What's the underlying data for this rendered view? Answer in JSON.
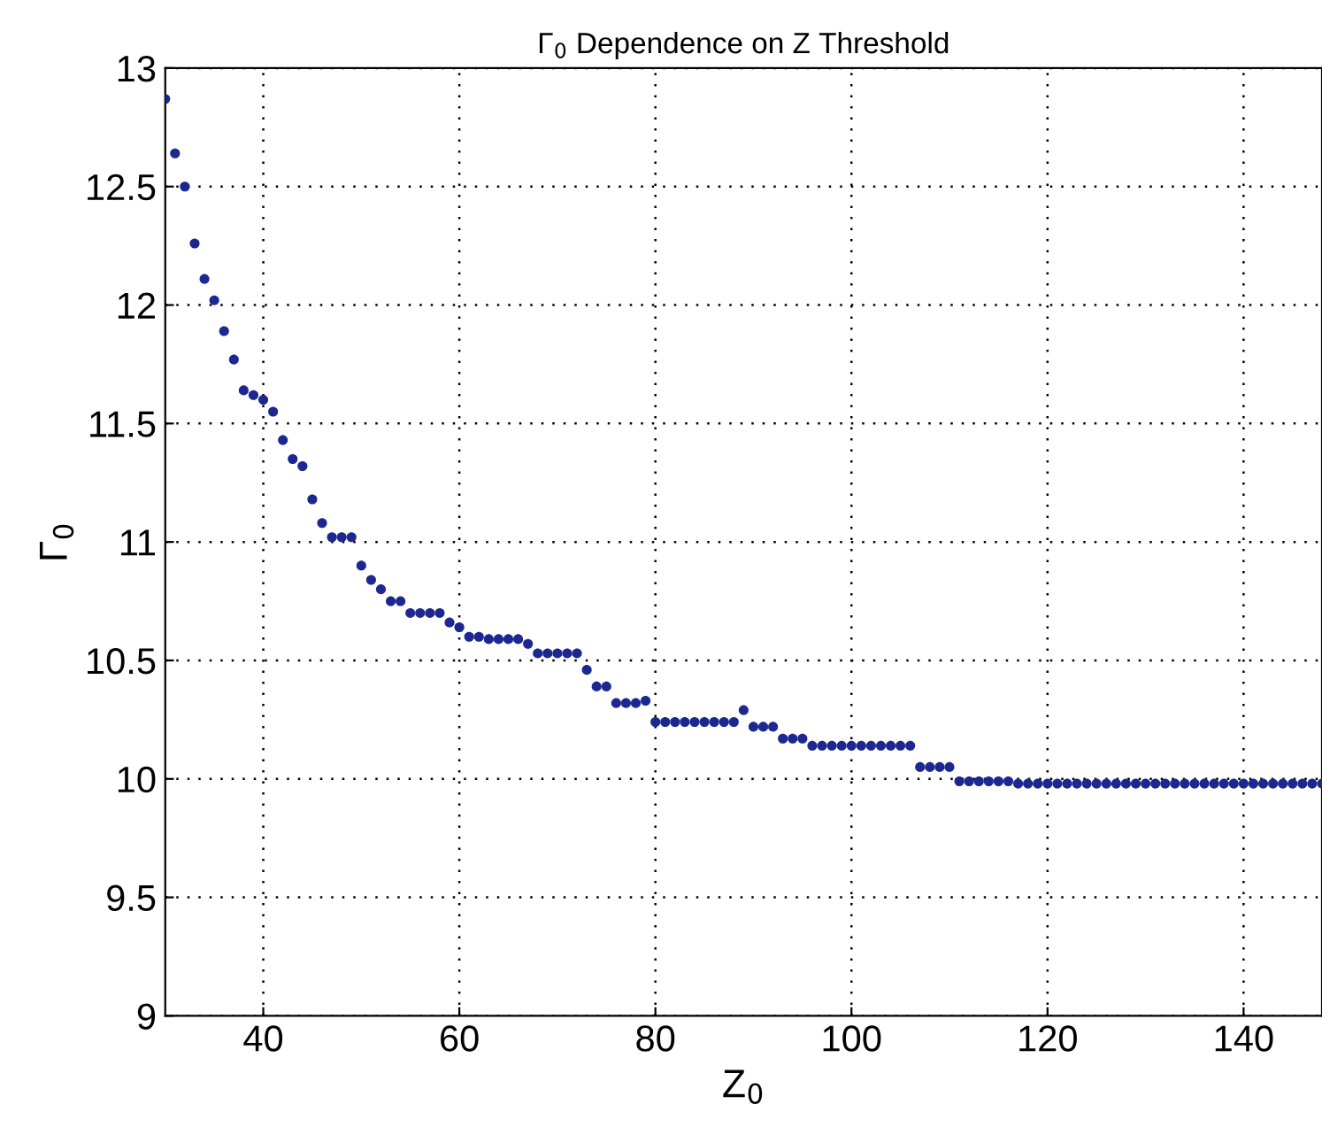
{
  "chart_data": {
    "type": "scatter",
    "title": "Γ$_{0}$ Dependence on Z Threshold",
    "xlabel": "Z$_{0}$",
    "ylabel": "Γ$_{0}$",
    "x": [
      30,
      31,
      32,
      33,
      34,
      35,
      36,
      37,
      38,
      39,
      40,
      41,
      42,
      43,
      44,
      45,
      46,
      47,
      48,
      49,
      50,
      51,
      52,
      53,
      54,
      55,
      56,
      57,
      58,
      59,
      60,
      61,
      62,
      63,
      64,
      65,
      66,
      67,
      68,
      69,
      70,
      71,
      72,
      73,
      74,
      75,
      76,
      77,
      78,
      79,
      80,
      81,
      82,
      83,
      84,
      85,
      86,
      87,
      88,
      89,
      90,
      91,
      92,
      93,
      94,
      95,
      96,
      97,
      98,
      99,
      100,
      101,
      102,
      103,
      104,
      105,
      106,
      107,
      108,
      109,
      110,
      111,
      112,
      113,
      114,
      115,
      116,
      117,
      118,
      119,
      120,
      121,
      122,
      123,
      124,
      125,
      126,
      127,
      128,
      129,
      130,
      131,
      132,
      133,
      134,
      135,
      136,
      137,
      138,
      139,
      140,
      141,
      142,
      143,
      144,
      145,
      146,
      147,
      148
    ],
    "series": [
      {
        "color": "#1c2790",
        "values": [
          12.87,
          12.64,
          12.5,
          12.26,
          12.11,
          12.02,
          11.89,
          11.77,
          11.64,
          11.62,
          11.6,
          11.55,
          11.43,
          11.35,
          11.32,
          11.18,
          11.08,
          11.02,
          11.02,
          11.02,
          10.9,
          10.84,
          10.8,
          10.75,
          10.75,
          10.7,
          10.7,
          10.7,
          10.7,
          10.66,
          10.64,
          10.6,
          10.6,
          10.59,
          10.59,
          10.59,
          10.59,
          10.57,
          10.53,
          10.53,
          10.53,
          10.53,
          10.53,
          10.46,
          10.39,
          10.39,
          10.32,
          10.32,
          10.32,
          10.33,
          10.24,
          10.24,
          10.24,
          10.24,
          10.24,
          10.24,
          10.24,
          10.24,
          10.24,
          10.29,
          10.22,
          10.22,
          10.22,
          10.17,
          10.17,
          10.17,
          10.14,
          10.14,
          10.14,
          10.14,
          10.14,
          10.14,
          10.14,
          10.14,
          10.14,
          10.14,
          10.14,
          10.05,
          10.05,
          10.05,
          10.05,
          9.99,
          9.99,
          9.99,
          9.99,
          9.99,
          9.99,
          9.98,
          9.98,
          9.98,
          9.98,
          9.98,
          9.98,
          9.98,
          9.98,
          9.98,
          9.98,
          9.98,
          9.98,
          9.98,
          9.98,
          9.98,
          9.98,
          9.98,
          9.98,
          9.98,
          9.98,
          9.98,
          9.98,
          9.98,
          9.98,
          9.98,
          9.98,
          9.98,
          9.98,
          9.98,
          9.98,
          9.98,
          9.98
        ]
      }
    ],
    "xlim": [
      30,
      148
    ],
    "xticks": [
      40,
      60,
      80,
      100,
      120,
      140
    ],
    "ylim": [
      9,
      13
    ],
    "yticks": [
      9,
      9.5,
      10,
      10.5,
      11,
      11.5,
      12,
      12.5,
      13
    ],
    "grid": true,
    "marker": "circle"
  }
}
